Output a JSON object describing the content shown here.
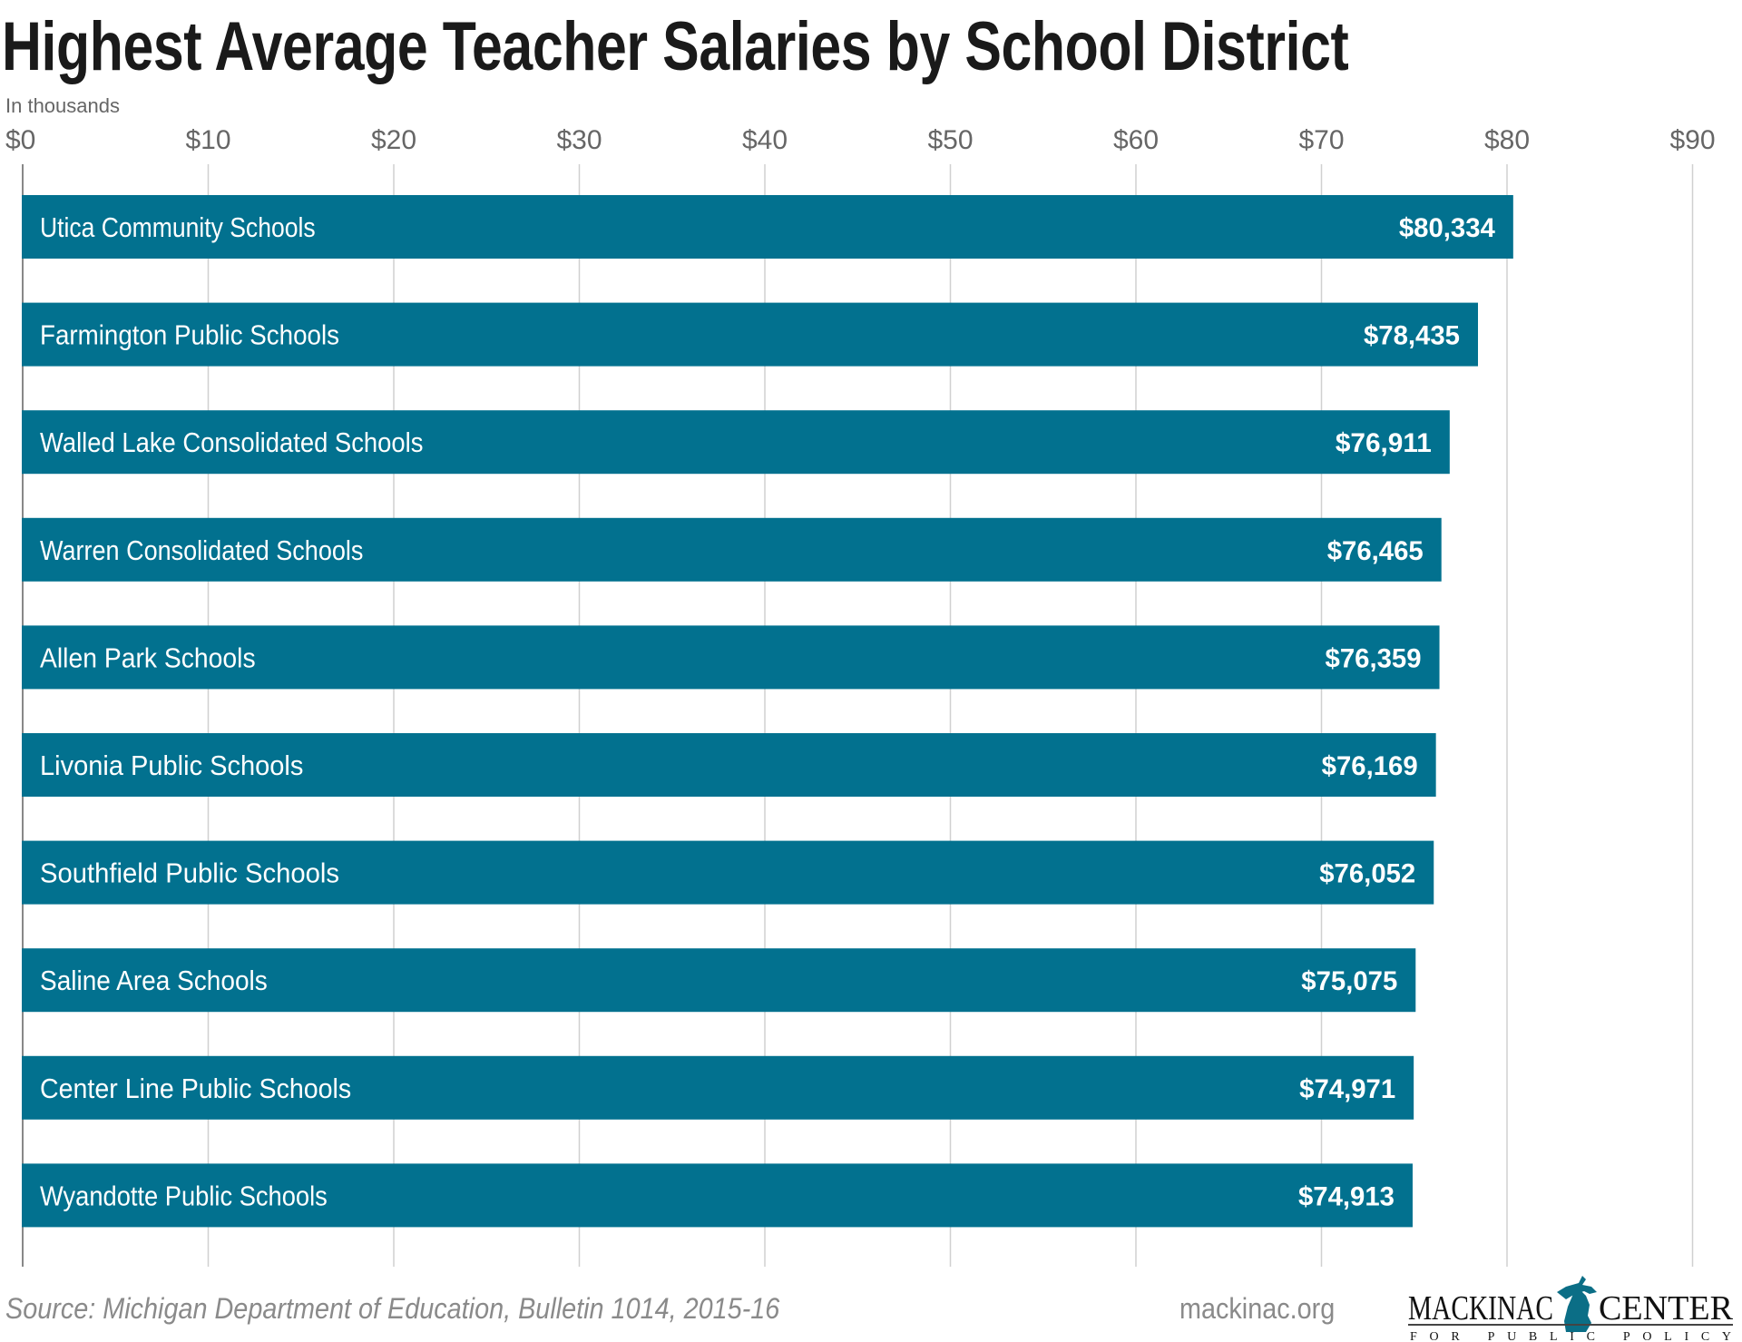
{
  "chart_data": {
    "type": "bar",
    "orientation": "horizontal",
    "title": "Highest Average Teacher Salaries by School District",
    "subtitle": "In thousands",
    "xlim": [
      0,
      90
    ],
    "ticks": [
      0,
      10,
      20,
      30,
      40,
      50,
      60,
      70,
      80,
      90
    ],
    "tick_labels": [
      "$0",
      "$10",
      "$20",
      "$30",
      "$40",
      "$50",
      "$60",
      "$70",
      "$80",
      "$90"
    ],
    "grid": true,
    "categories": [
      "Utica Community Schools",
      "Farmington Public Schools",
      "Walled Lake Consolidated Schools",
      "Warren Consolidated Schools",
      "Allen Park Schools",
      "Livonia Public Schools",
      "Southfield Public Schools",
      "Saline Area Schools",
      "Center Line Public Schools",
      "Wyandotte Public Schools"
    ],
    "values": [
      80.334,
      78.435,
      76.911,
      76.465,
      76.359,
      76.169,
      76.052,
      75.075,
      74.971,
      74.913
    ],
    "value_labels": [
      "$80,334",
      "$78,435",
      "$76,911",
      "$76,465",
      "$76,359",
      "$76,169",
      "$76,052",
      "$75,075",
      "$74,971",
      "$74,913"
    ],
    "bar_color": "#02718F"
  },
  "footer": {
    "source": "Source: Michigan Department of Education, Bulletin 1014, 2015-16",
    "site": "mackinac.org"
  },
  "logo": {
    "name_left": "MACKINAC",
    "name_right": "CENTER",
    "tagline": "FOR PUBLIC POLICY"
  }
}
